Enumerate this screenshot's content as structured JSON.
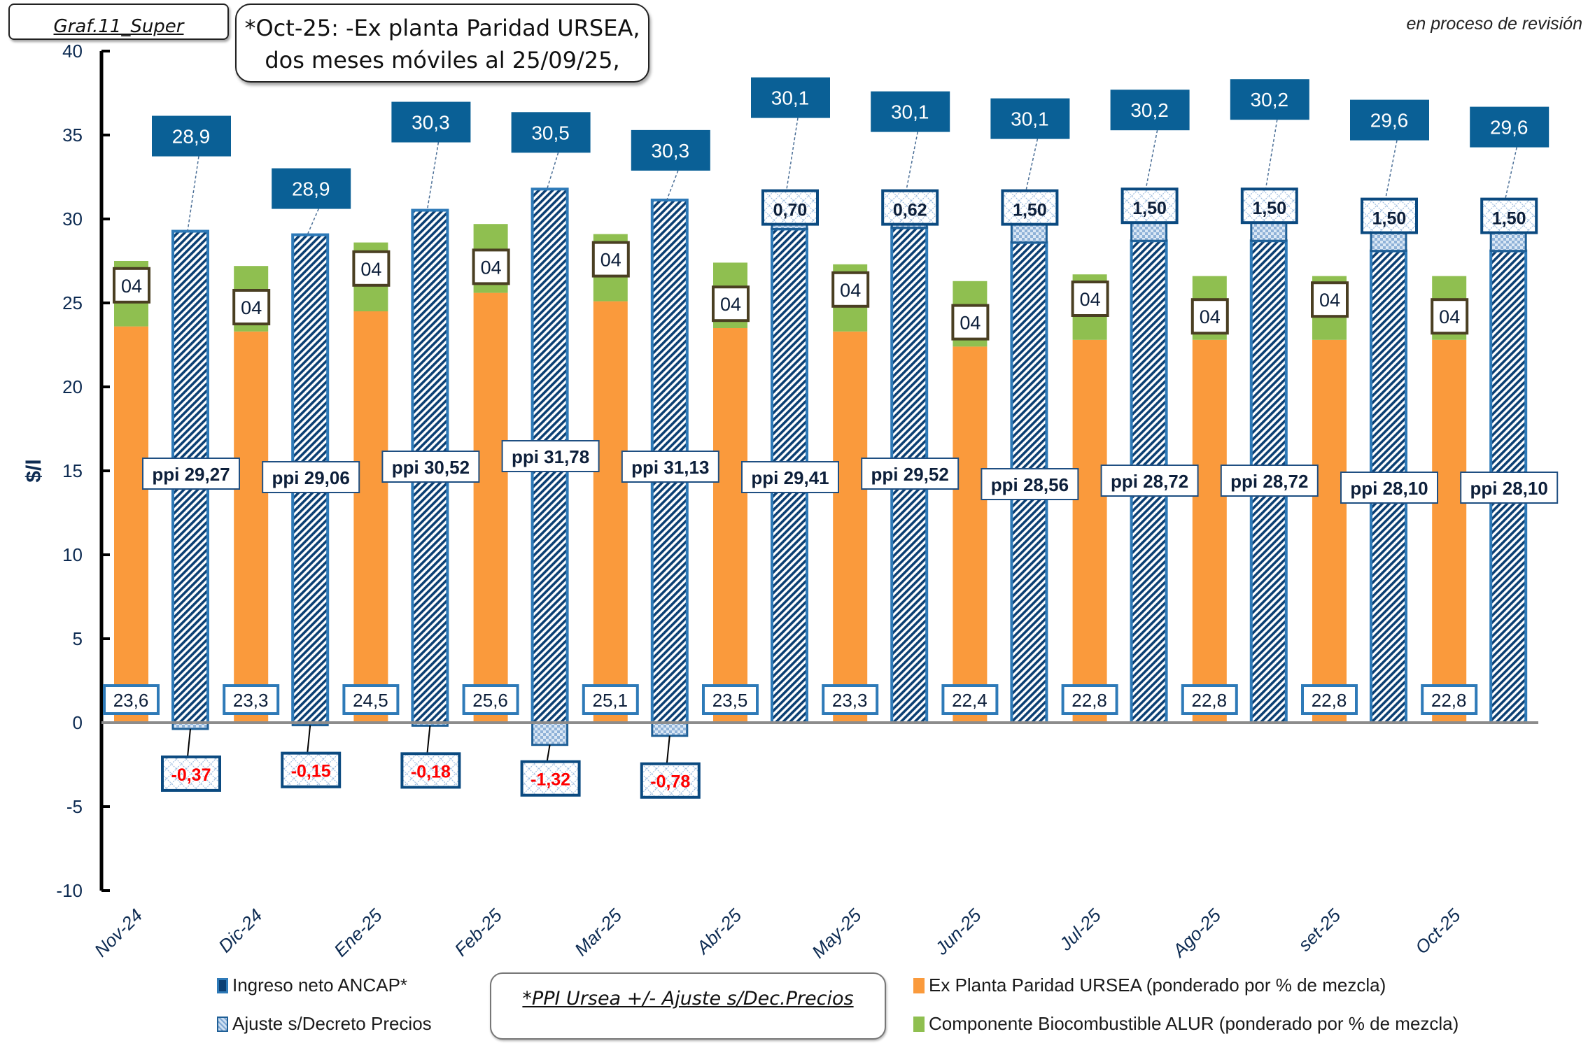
{
  "header": {
    "graph_id": "Graf.11_Super",
    "note_line1": "*Oct-25: -Ex planta Paridad URSEA,",
    "note_line2": "dos meses móviles al 25/09/25,",
    "status": "en proceso de revisión"
  },
  "footnote_box": "*PPI Ursea +/- Ajuste s/Dec.Precios",
  "colors": {
    "net_fill": "#0b3f73",
    "net_border": "#2e7ab8",
    "top_label_bg": "#0a6096",
    "orange": "#fa9a3c",
    "green": "#8fbf50",
    "negative_text": "#ff0000",
    "zero_line": "#8c8c8c",
    "bio_label_border": "#4a3f22"
  },
  "chart_data": {
    "type": "bar",
    "title": "Graf.11_Super",
    "xlabel": "",
    "ylabel": "$/l",
    "ylim": [
      -10,
      40
    ],
    "yticks": [
      40,
      35,
      30,
      25,
      20,
      15,
      10,
      5,
      0,
      -5,
      -10
    ],
    "grid": false,
    "legend_position": "bottom",
    "categories": [
      "Nov-24",
      "Dic-24",
      "Ene-25",
      "Feb-25",
      "Mar-25",
      "Abr-25",
      "May-25",
      "Jun-25",
      "Jul-25",
      "Ago-25",
      "set-25",
      "Oct-25"
    ],
    "series": [
      {
        "name": "Ex Planta Paridad URSEA (ponderado por % de mezcla)",
        "stack": "supply",
        "values": [
          23.6,
          23.3,
          24.5,
          25.6,
          25.1,
          23.5,
          23.3,
          22.4,
          22.8,
          22.8,
          22.8,
          22.8
        ],
        "labels": [
          "23,6",
          "23,3",
          "24,5",
          "25,6",
          "25,1",
          "23,5",
          "23,3",
          "22,4",
          "22,8",
          "22,8",
          "22,8",
          "22,8"
        ]
      },
      {
        "name": "Componente Biocombustible ALUR (ponderado por % de mezcla)",
        "stack": "supply",
        "values": [
          3.9,
          3.9,
          4.1,
          4.1,
          4.0,
          3.9,
          4.0,
          3.9,
          3.9,
          3.8,
          3.8,
          3.8
        ],
        "labels": [
          "04",
          "04",
          "04",
          "04",
          "04",
          "04",
          "04",
          "04",
          "04",
          "04",
          "04",
          "04"
        ]
      },
      {
        "name": "PPI URSEA",
        "stack": "ancap",
        "values": [
          29.27,
          29.06,
          30.52,
          31.78,
          31.13,
          29.41,
          29.52,
          28.56,
          28.72,
          28.72,
          28.1,
          28.1
        ],
        "labels": [
          "ppi 29,27",
          "ppi 29,06",
          "ppi 30,52",
          "ppi 31,78",
          "ppi 31,13",
          "ppi 29,41",
          "ppi 29,52",
          "ppi 28,56",
          "ppi 28,72",
          "ppi 28,72",
          "ppi 28,10",
          "ppi 28,10"
        ]
      },
      {
        "name": "Ajuste s/Decreto Precios",
        "stack": "ancap",
        "values": [
          -0.37,
          -0.15,
          -0.18,
          -1.32,
          -0.78,
          0.7,
          0.62,
          1.5,
          1.5,
          1.5,
          1.5,
          1.5
        ],
        "labels": [
          "-0,37",
          "-0,15",
          "-0,18",
          "-1,32",
          "-0,78",
          "0,70",
          "0,62",
          "1,50",
          "1,50",
          "1,50",
          "1,50",
          "1,50"
        ]
      },
      {
        "name": "Ingreso neto ANCAP*",
        "stack": "ancap",
        "values": [
          28.9,
          28.9,
          30.3,
          30.5,
          30.3,
          30.1,
          30.1,
          30.1,
          30.2,
          30.2,
          29.6,
          29.6
        ],
        "labels": [
          "28,9",
          "28,9",
          "30,3",
          "30,5",
          "30,3",
          "30,1",
          "30,1",
          "30,1",
          "30,2",
          "30,2",
          "29,6",
          "29,6"
        ]
      }
    ]
  },
  "legend": [
    {
      "key": "net",
      "label": "Ingreso neto ANCAP*"
    },
    {
      "key": "adj",
      "label": "Ajuste s/Decreto Precios"
    },
    {
      "key": "orange",
      "label": "Ex Planta Paridad URSEA (ponderado por % de mezcla)"
    },
    {
      "key": "green",
      "label": "Componente Biocombustible ALUR (ponderado por % de mezcla)"
    }
  ]
}
